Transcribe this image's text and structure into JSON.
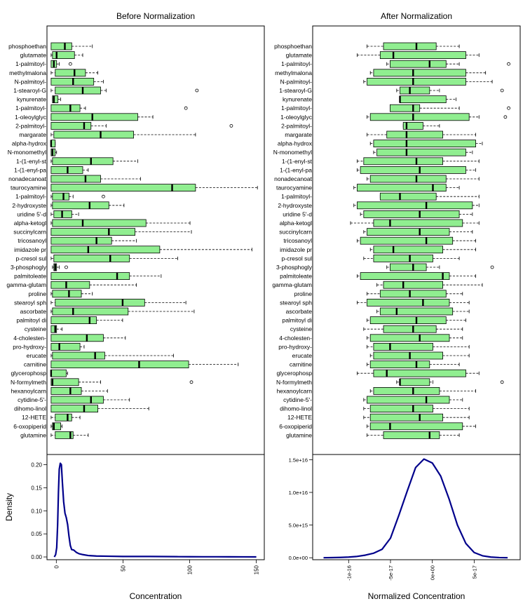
{
  "chart_data": [
    {
      "type": "boxplot",
      "title": "Before Normalization",
      "xlim": [
        -3,
        155
      ],
      "categories": [
        "phosphoethan",
        "glutamate",
        "1-palmitoyl-",
        "methylmalona",
        "N-palmitoyl-",
        "1-stearoyl-G",
        "kynurenate",
        "1-palmitoyl-",
        "1-oleoylglyc",
        "2-palmitoyl-",
        "margarate",
        "alpha-hydrox",
        "N-monomethyl",
        "1-(1-enyl-st",
        "1-(1-enyl-pa",
        "nonadecanoat",
        "taurocyamine",
        "1-palmitoyl-",
        "2-hydroxyste",
        "uridine 5'-d",
        "alpha-ketogl",
        "succinylcarn",
        "tricosanoyl",
        "imidazole pr",
        "p-cresol sul",
        "3-phosphogly",
        "palmitoleate",
        "gamma-glutam",
        "proline",
        "stearoyl sph",
        "ascorbate",
        "palmitoyl di",
        "cysteine",
        "4-cholesten-",
        "pro-hydroxy-",
        "erucate",
        "carnitine",
        "glycerophosp",
        "N-formylmeth",
        "hexanoylcarn",
        "cytidine-5'-",
        "dihomo-linol",
        "12-HETE",
        "6-oxopiperid",
        "glutamine"
      ],
      "boxes": [
        [
          0,
          0,
          10,
          15,
          30,
          []
        ],
        [
          0,
          1,
          4,
          17,
          23,
          []
        ],
        [
          0,
          0,
          2,
          4,
          6,
          [
            14
          ]
        ],
        [
          0,
          3,
          17,
          25,
          34,
          []
        ],
        [
          0,
          0,
          16,
          31,
          38,
          []
        ],
        [
          0,
          3,
          23,
          36,
          40,
          [
            106
          ]
        ],
        [
          1,
          1,
          2,
          5,
          7,
          []
        ],
        [
          0,
          0,
          14,
          21,
          25,
          [
            98
          ]
        ],
        [
          0,
          0,
          30,
          63,
          74,
          []
        ],
        [
          0,
          0,
          24,
          29,
          40,
          [
            131
          ]
        ],
        [
          0,
          2,
          36,
          60,
          105,
          []
        ],
        [
          0,
          0,
          0,
          3,
          3,
          []
        ],
        [
          0,
          0,
          1,
          3,
          4,
          []
        ],
        [
          0,
          1,
          29,
          45,
          63,
          []
        ],
        [
          0,
          0,
          12,
          23,
          27,
          []
        ],
        [
          0,
          0,
          25,
          36,
          65,
          []
        ],
        [
          0,
          0,
          88,
          105,
          150,
          []
        ],
        [
          0,
          1,
          9,
          13,
          16,
          [
            38
          ]
        ],
        [
          0,
          1,
          28,
          42,
          53,
          []
        ],
        [
          0,
          2,
          8,
          15,
          20,
          []
        ],
        [
          0,
          1,
          23,
          69,
          101,
          []
        ],
        [
          0,
          0,
          42,
          61,
          102,
          []
        ],
        [
          0,
          0,
          33,
          44,
          62,
          []
        ],
        [
          0,
          0,
          27,
          79,
          146,
          []
        ],
        [
          0,
          2,
          43,
          57,
          92,
          []
        ],
        [
          1,
          2,
          3,
          4,
          6,
          [
            11
          ]
        ],
        [
          0,
          0,
          48,
          57,
          80,
          []
        ],
        [
          0,
          0,
          11,
          28,
          62,
          []
        ],
        [
          0,
          1,
          13,
          22,
          30,
          []
        ],
        [
          0,
          3,
          52,
          68,
          98,
          []
        ],
        [
          0,
          1,
          16,
          56,
          104,
          []
        ],
        [
          0,
          0,
          28,
          33,
          52,
          []
        ],
        [
          0,
          0,
          3,
          4,
          8,
          []
        ],
        [
          0,
          0,
          26,
          38,
          54,
          []
        ],
        [
          0,
          0,
          6,
          21,
          24,
          []
        ],
        [
          0,
          1,
          32,
          39,
          89,
          []
        ],
        [
          0,
          0,
          64,
          100,
          136,
          []
        ],
        [
          0,
          0,
          0,
          11,
          12,
          []
        ],
        [
          0,
          0,
          1,
          20,
          36,
          [
            102
          ]
        ],
        [
          0,
          0,
          14,
          22,
          41,
          []
        ],
        [
          0,
          0,
          29,
          38,
          57,
          []
        ],
        [
          0,
          0,
          24,
          34,
          71,
          []
        ],
        [
          0,
          3,
          12,
          15,
          21,
          []
        ],
        [
          0,
          1,
          2,
          7,
          8,
          []
        ],
        [
          0,
          3,
          14,
          16,
          27,
          []
        ]
      ]
    },
    {
      "type": "boxplot",
      "title": "After Normalization",
      "xlim": [
        -3.15,
        3.15
      ],
      "categories": [
        "phosphoethan",
        "glutamate",
        "1-palmitoyl-",
        "methylmalona",
        "N-palmitoyl-",
        "1-stearoyl-G",
        "kynurenate",
        "1-palmitoyl-",
        "1-oleoylglyc",
        "2-palmitoyl-",
        "margarate",
        "alpha-hydrox",
        "N-monomethyl",
        "1-(1-enyl-st",
        "1-(1-enyl-pa",
        "nonadecanoat",
        "taurocyamine",
        "1-palmitoyl-",
        "2-hydroxyste",
        "uridine 5'-d",
        "alpha-ketogl",
        "succinylcarn",
        "tricosanoyl",
        "imidazole pr",
        "p-cresol sul",
        "3-phosphogly",
        "palmitoleate",
        "gamma-glutam",
        "proline",
        "stearoyl sph",
        "ascorbate",
        "palmitoyl di",
        "cysteine",
        "4-cholesten-",
        "pro-hydroxy-",
        "erucate",
        "carnitine",
        "glycerophosp",
        "N-formylmeth",
        "hexanoylcarn",
        "cytidine-5'-",
        "dihomo-linol",
        "12-HETE",
        "6-oxopiperid",
        "glutamine"
      ],
      "boxes": [
        [
          -1.5,
          -1.0,
          0.0,
          0.6,
          1.3,
          []
        ],
        [
          -1.8,
          -1.1,
          -0.7,
          1.5,
          1.9,
          []
        ],
        [
          -0.9,
          -0.8,
          0.4,
          0.9,
          1.3,
          [
            2.8
          ]
        ],
        [
          -1.4,
          -1.3,
          -0.1,
          1.5,
          2.1,
          []
        ],
        [
          -1.6,
          -1.5,
          -0.1,
          1.5,
          2.3,
          []
        ],
        [
          -0.6,
          -0.5,
          -0.2,
          0.4,
          0.7,
          [
            2.6
          ]
        ],
        [
          -0.5,
          -0.5,
          -0.5,
          0.9,
          1.2,
          []
        ],
        [
          -0.8,
          -0.8,
          -0.1,
          0.1,
          1.3,
          [
            2.8
          ]
        ],
        [
          -1.5,
          -1.4,
          -0.1,
          1.6,
          1.9,
          [
            2.7
          ]
        ],
        [
          -0.4,
          -0.4,
          -0.3,
          0.2,
          0.7,
          []
        ],
        [
          -1.5,
          -0.9,
          -0.3,
          0.8,
          1.8,
          []
        ],
        [
          -1.4,
          -1.3,
          -0.3,
          1.8,
          2.0,
          []
        ],
        [
          -1.3,
          -1.2,
          -0.3,
          1.5,
          1.7,
          []
        ],
        [
          -1.8,
          -1.6,
          0.0,
          0.8,
          1.9,
          []
        ],
        [
          -1.8,
          -1.7,
          0.1,
          1.5,
          1.8,
          []
        ],
        [
          -1.5,
          -1.4,
          0.0,
          0.9,
          1.9,
          []
        ],
        [
          -1.9,
          -1.8,
          0.5,
          0.9,
          1.3,
          []
        ],
        [
          -1.1,
          -1.1,
          -0.5,
          0.6,
          1.9,
          []
        ],
        [
          -1.9,
          -1.8,
          0.3,
          1.7,
          1.9,
          []
        ],
        [
          -1.7,
          -1.6,
          0.1,
          1.3,
          1.7,
          []
        ],
        [
          -2.0,
          -1.3,
          -0.8,
          1.4,
          1.9,
          []
        ],
        [
          -1.6,
          -1.5,
          0.1,
          1.0,
          1.7,
          []
        ],
        [
          -1.8,
          -1.7,
          0.3,
          1.1,
          1.8,
          []
        ],
        [
          -1.4,
          -1.3,
          -0.7,
          0.8,
          1.8,
          []
        ],
        [
          -1.6,
          -1.3,
          -0.2,
          0.5,
          1.3,
          []
        ],
        [
          -0.9,
          -0.8,
          -0.1,
          0.3,
          0.7,
          [
            2.3
          ]
        ],
        [
          -1.8,
          -1.7,
          0.8,
          1.0,
          1.8,
          []
        ],
        [
          -1.2,
          -1.0,
          -0.4,
          0.8,
          2.0,
          []
        ],
        [
          -1.5,
          -1.1,
          -0.2,
          0.9,
          1.4,
          []
        ],
        [
          -1.8,
          -1.5,
          0.2,
          1.0,
          1.6,
          []
        ],
        [
          -1.2,
          -1.1,
          -0.6,
          1.1,
          1.6,
          []
        ],
        [
          -1.5,
          -1.4,
          0.0,
          0.9,
          1.5,
          []
        ],
        [
          -1.6,
          -1.0,
          -0.1,
          0.6,
          1.4,
          []
        ],
        [
          -1.5,
          -1.4,
          0.1,
          1.0,
          1.4,
          []
        ],
        [
          -1.5,
          -1.3,
          -0.8,
          0.5,
          1.6,
          []
        ],
        [
          -1.4,
          -1.3,
          -0.2,
          0.8,
          1.6,
          []
        ],
        [
          -1.5,
          -1.4,
          0.0,
          0.4,
          1.3,
          []
        ],
        [
          -1.8,
          -1.3,
          -0.9,
          1.5,
          1.9,
          []
        ],
        [
          -0.6,
          -0.5,
          -0.5,
          0.4,
          0.5,
          [
            2.6
          ]
        ],
        [
          -1.4,
          -1.3,
          -0.1,
          0.7,
          1.8,
          []
        ],
        [
          -1.6,
          -1.5,
          0.3,
          1.0,
          1.4,
          []
        ],
        [
          -1.6,
          -1.4,
          -0.1,
          0.5,
          1.6,
          []
        ],
        [
          -1.6,
          -1.4,
          0.1,
          0.8,
          1.6,
          []
        ],
        [
          -1.5,
          -1.4,
          -0.8,
          1.4,
          1.8,
          []
        ],
        [
          -1.5,
          -1.0,
          0.4,
          0.7,
          1.3,
          []
        ]
      ]
    },
    {
      "type": "line",
      "ylabel": "Density",
      "xlabel": "Concentration",
      "xlim": [
        -7,
        156
      ],
      "ylim": [
        -0.006,
        0.222
      ],
      "xticks": [
        0,
        50,
        100,
        150
      ],
      "xtick_labels": [
        "0",
        "50",
        "100",
        "150"
      ],
      "yticks": [
        0.0,
        0.05,
        0.1,
        0.15,
        0.2
      ],
      "ytick_labels": [
        "0.00",
        "0.05",
        "0.10",
        "0.15",
        "0.20"
      ],
      "x": [
        -1.5,
        -0.5,
        0.3,
        1,
        1.6,
        2.2,
        3,
        3.8,
        4.6,
        5.5,
        6.5,
        7.5,
        8.5,
        9.5,
        10.5,
        11.5,
        13,
        15,
        17,
        20,
        24,
        30,
        40,
        50,
        60,
        70,
        80,
        90,
        100,
        110,
        120,
        130,
        140,
        150
      ],
      "y": [
        0,
        0.005,
        0.02,
        0.07,
        0.14,
        0.19,
        0.203,
        0.2,
        0.16,
        0.12,
        0.095,
        0.085,
        0.07,
        0.045,
        0.025,
        0.016,
        0.015,
        0.01,
        0.007,
        0.005,
        0.003,
        0.002,
        0.0015,
        0.001,
        0.001,
        0.001,
        0.0008,
        0.0006,
        0.0005,
        0.0004,
        0.0004,
        0.0003,
        0.0002,
        0.0001
      ]
    },
    {
      "type": "line",
      "xlabel": "Normalized Concentration",
      "xlim": [
        -1.43e-16,
        1.05e-16
      ],
      "ylim": [
        -300000000000000.0,
        1.58e+16
      ],
      "xticks": [
        -1e-16,
        -5e-17,
        0,
        5e-17
      ],
      "xtick_labels": [
        "-1e-16",
        "-5e-17",
        "0e+00",
        "5e-17"
      ],
      "yticks": [
        0,
        5000000000000000.0,
        1e+16,
        1.5e+16
      ],
      "ytick_labels": [
        "0.0e+00",
        "5.0e+15",
        "1.0e+16",
        "1.5e+16"
      ],
      "x": [
        -1.3e-16,
        -1.2e-16,
        -1.1e-16,
        -1e-16,
        -9e-17,
        -8e-17,
        -7e-17,
        -6e-17,
        -5e-17,
        -4e-17,
        -3e-17,
        -2e-17,
        -1e-17,
        0,
        1e-17,
        2e-17,
        3e-17,
        4e-17,
        5e-17,
        6e-17,
        7e-17,
        8e-17,
        9e-17
      ],
      "y": [
        0,
        20000000000000.0,
        50000000000000.0,
        100000000000000.0,
        200000000000000.0,
        400000000000000.0,
        700000000000000.0,
        1300000000000000.0,
        3000000000000000.0,
        6500000000000000.0,
        1.02e+16,
        1.38e+16,
        1.51e+16,
        1.45e+16,
        1.25e+16,
        9000000000000000.0,
        5000000000000000.0,
        2200000000000000.0,
        800000000000000.0,
        300000000000000.0,
        100000000000000.0,
        30000000000000.0,
        0
      ]
    }
  ]
}
